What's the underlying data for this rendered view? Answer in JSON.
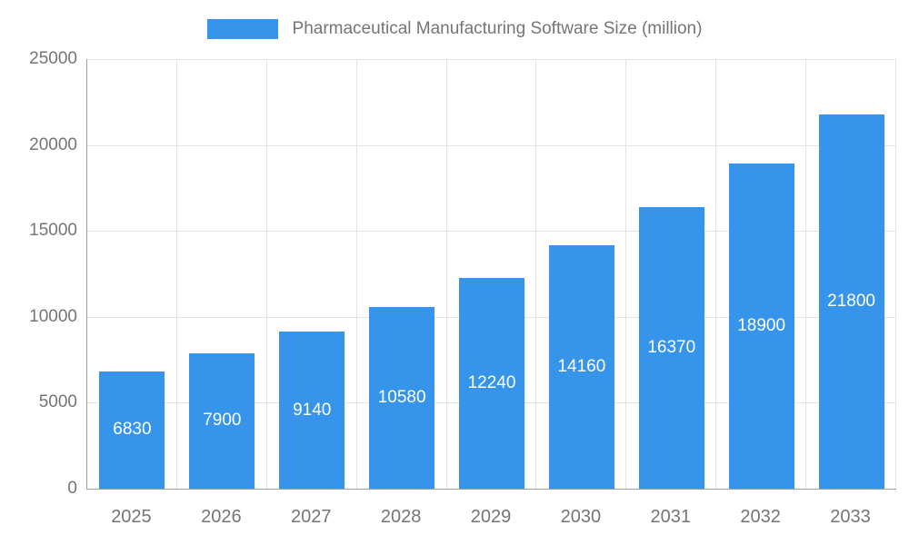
{
  "legend": {
    "title": "Pharmaceutical Manufacturing Software Size (million)"
  },
  "chart_data": {
    "type": "bar",
    "title": "Pharmaceutical Manufacturing Software Size (million)",
    "categories": [
      "2025",
      "2026",
      "2027",
      "2028",
      "2029",
      "2030",
      "2031",
      "2032",
      "2033"
    ],
    "values": [
      6830,
      7900,
      9140,
      10580,
      12240,
      14160,
      16370,
      18900,
      21800
    ],
    "xlabel": "",
    "ylabel": "",
    "ylim": [
      0,
      25000
    ],
    "yticks": [
      0,
      5000,
      10000,
      15000,
      20000,
      25000
    ],
    "grid": true,
    "legend_position": "top",
    "colors": {
      "bar": "#3794eb",
      "value_label": "#ffffff",
      "axis_text": "#757575",
      "gridline": "#e3e3e3",
      "axis_line": "#9e9e9e"
    }
  }
}
